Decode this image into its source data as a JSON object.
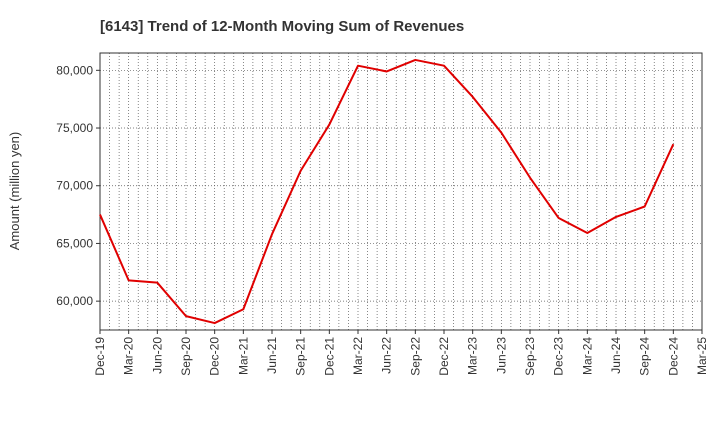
{
  "chart_data": {
    "type": "line",
    "title": "[6143]  Trend of 12-Month Moving Sum of Revenues",
    "xlabel": "",
    "ylabel": "Amount (million yen)",
    "categories": [
      "Dec-19",
      "Mar-20",
      "Jun-20",
      "Sep-20",
      "Dec-20",
      "Mar-21",
      "Jun-21",
      "Sep-21",
      "Dec-21",
      "Mar-22",
      "Jun-22",
      "Sep-22",
      "Dec-22",
      "Mar-23",
      "Jun-23",
      "Sep-23",
      "Dec-23",
      "Mar-24",
      "Jun-24",
      "Sep-24",
      "Dec-24",
      "Mar-25"
    ],
    "y_ticks": [
      60000,
      65000,
      70000,
      75000,
      80000
    ],
    "y_tick_labels": [
      "60,000",
      "65,000",
      "70,000",
      "75,000",
      "80,000"
    ],
    "ylim": [
      57500,
      81500
    ],
    "grid": true,
    "series": [
      {
        "color": "#e00000",
        "values": [
          67500,
          61800,
          61600,
          58700,
          58100,
          59300,
          65800,
          71300,
          75300,
          80400,
          79900,
          80900,
          80400,
          77700,
          74600,
          70700,
          67200,
          65900,
          67300,
          68200,
          73600,
          null
        ]
      }
    ]
  }
}
